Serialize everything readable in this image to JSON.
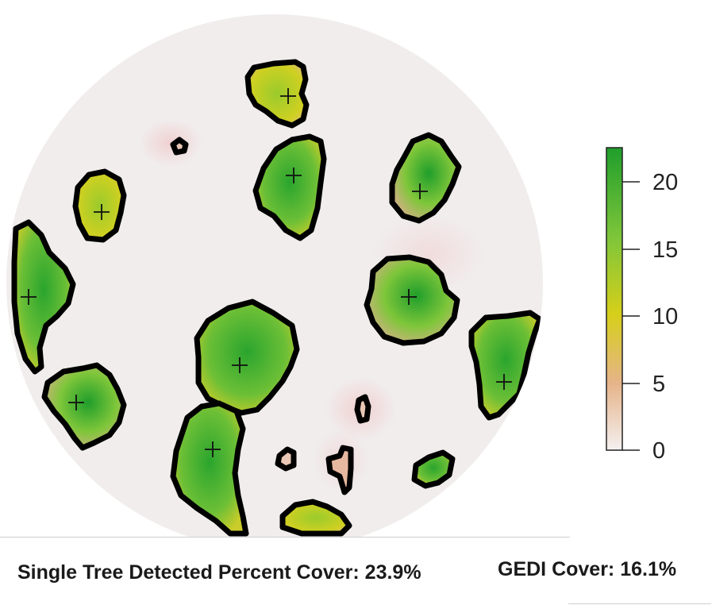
{
  "captions": {
    "single_tree": "Single Tree Detected Percent Cover: 23.9%",
    "gedi": "GEDI Cover: 16.1%"
  },
  "legend": {
    "ticks": [
      0,
      5,
      10,
      15,
      20
    ],
    "range": [
      0,
      22.5
    ],
    "colors": {
      "low": "#f2eeee",
      "mid_low": "#e6b48a",
      "mid": "#d6cf1a",
      "mid_high": "#7fc63a",
      "high": "#1f9e2b"
    }
  },
  "colors": {
    "background_disk": "#f1eded",
    "outline": "#000000",
    "marker": "#111111"
  }
}
